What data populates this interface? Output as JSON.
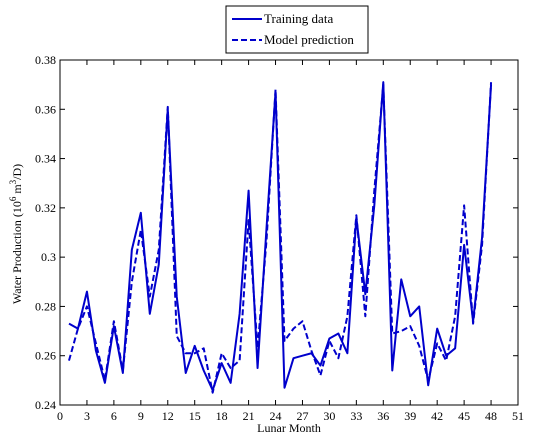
{
  "chart_data": {
    "type": "line",
    "title": "",
    "xlabel": "Lunar Month",
    "ylabel_parts": {
      "prefix": "Water Production (10",
      "sup1": "6",
      "mid": " m",
      "sup2": "3",
      "suffix": "/D)"
    },
    "xlim": [
      0,
      51
    ],
    "ylim": [
      0.24,
      0.38
    ],
    "xticks": [
      0,
      3,
      6,
      9,
      12,
      15,
      18,
      21,
      24,
      27,
      30,
      33,
      36,
      39,
      42,
      45,
      48,
      51
    ],
    "yticks": [
      0.24,
      0.26,
      0.28,
      0.3,
      0.32,
      0.34,
      0.36,
      0.38
    ],
    "ytick_labels": [
      "0.24",
      "0.26",
      "0.28",
      "0.3",
      "0.32",
      "0.34",
      "0.36",
      "0.38"
    ],
    "grid": false,
    "legend_position": "top-center",
    "x": [
      1,
      2,
      3,
      4,
      5,
      6,
      7,
      8,
      9,
      10,
      11,
      12,
      13,
      14,
      15,
      16,
      17,
      18,
      19,
      20,
      21,
      22,
      23,
      24,
      25,
      26,
      27,
      28,
      29,
      30,
      31,
      32,
      33,
      34,
      35,
      36,
      37,
      38,
      39,
      40,
      41,
      42,
      43,
      44,
      45,
      46,
      47,
      48
    ],
    "series": [
      {
        "name": "Training data",
        "style": "solid",
        "color": "#0000cc",
        "values": [
          0.273,
          0.271,
          0.286,
          0.262,
          0.249,
          0.272,
          0.253,
          0.303,
          0.318,
          0.277,
          0.297,
          0.36,
          0.284,
          0.253,
          0.264,
          0.254,
          0.246,
          0.257,
          0.249,
          0.277,
          0.327,
          0.255,
          0.312,
          0.367,
          0.247,
          0.259,
          0.26,
          0.261,
          0.256,
          0.267,
          0.269,
          0.261,
          0.316,
          0.285,
          0.321,
          0.371,
          0.254,
          0.291,
          0.276,
          0.28,
          0.248,
          0.271,
          0.26,
          0.263,
          0.305,
          0.274,
          0.308,
          0.37
        ]
      },
      {
        "name": "Model prediction",
        "style": "dashed",
        "color": "#0000cc",
        "values": [
          0.258,
          0.271,
          0.28,
          0.265,
          0.25,
          0.274,
          0.254,
          0.29,
          0.311,
          0.284,
          0.303,
          0.361,
          0.268,
          0.261,
          0.261,
          0.263,
          0.245,
          0.261,
          0.255,
          0.258,
          0.315,
          0.263,
          0.307,
          0.368,
          0.266,
          0.271,
          0.274,
          0.262,
          0.252,
          0.266,
          0.259,
          0.276,
          0.317,
          0.276,
          0.327,
          0.37,
          0.269,
          0.27,
          0.272,
          0.264,
          0.25,
          0.265,
          0.258,
          0.276,
          0.321,
          0.273,
          0.305,
          0.371
        ]
      }
    ]
  }
}
